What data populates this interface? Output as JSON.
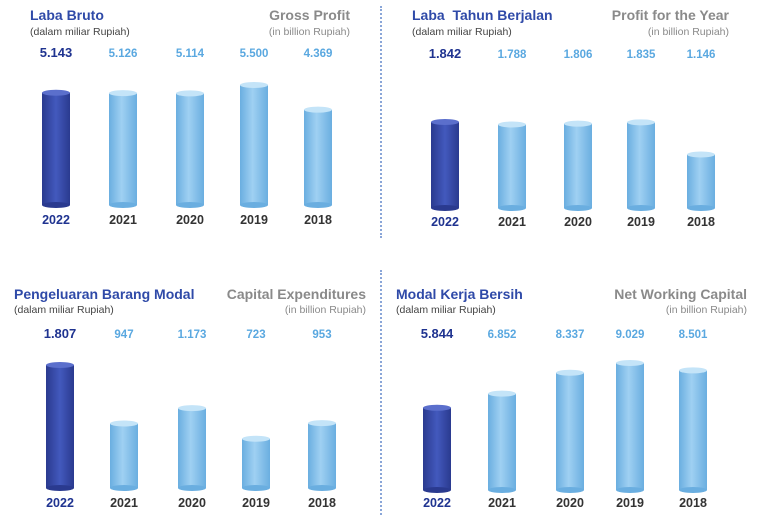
{
  "colors": {
    "highlight_dark": "#2a3a8f",
    "highlight_mid": "#4359bd",
    "bar_light": "#9fd0f2",
    "bar_mid": "#6aaee0",
    "value_highlight": "#1f3390",
    "value_other": "#5aa8e0",
    "year_text": "#333333"
  },
  "panels": [
    {
      "title_id": "Laba Bruto",
      "subtitle_id": "(dalam miliar Rupiah)",
      "title_en": "Gross Profit",
      "subtitle_en": "(in billion Rupiah)"
    },
    {
      "title_id": "Laba  Tahun Berjalan",
      "subtitle_id": "(dalam miliar Rupiah)",
      "title_en": "Profit for the Year",
      "subtitle_en": "(in billion Rupiah)"
    },
    {
      "title_id": "Pengeluaran Barang Modal",
      "subtitle_id": "(dalam miliar Rupiah)",
      "title_en": "Capital Expenditures",
      "subtitle_en": "(in billion Rupiah)"
    },
    {
      "title_id": "Modal Kerja Bersih",
      "subtitle_id": "(dalam miliar Rupiah)",
      "title_en": "Net Working Capital",
      "subtitle_en": "(in billion Rupiah)"
    }
  ],
  "chart_data": [
    {
      "type": "bar",
      "title": "Laba Bruto / Gross Profit",
      "categories": [
        "2022",
        "2021",
        "2020",
        "2019",
        "2018"
      ],
      "values": [
        5143,
        5126,
        5114,
        5500,
        4369
      ],
      "value_labels": [
        "5.143",
        "5.126",
        "5.114",
        "5.500",
        "4.369"
      ],
      "highlight_index": 0
    },
    {
      "type": "bar",
      "title": "Laba Tahun Berjalan / Profit for the Year",
      "categories": [
        "2022",
        "2021",
        "2020",
        "2019",
        "2018"
      ],
      "values": [
        1842,
        1788,
        1806,
        1835,
        1146
      ],
      "value_labels": [
        "1.842",
        "1.788",
        "1.806",
        "1.835",
        "1.146"
      ],
      "highlight_index": 0
    },
    {
      "type": "bar",
      "title": "Pengeluaran Barang Modal / Capital Expenditures",
      "categories": [
        "2022",
        "2021",
        "2020",
        "2019",
        "2018"
      ],
      "values": [
        1807,
        947,
        1173,
        723,
        953
      ],
      "value_labels": [
        "1.807",
        "947",
        "1.173",
        "723",
        "953"
      ],
      "highlight_index": 0
    },
    {
      "type": "bar",
      "title": "Modal Kerja Bersih / Net Working Capital",
      "categories": [
        "2022",
        "2021",
        "2020",
        "2019",
        "2018"
      ],
      "values": [
        5844,
        6852,
        8337,
        9029,
        8501
      ],
      "value_labels": [
        "5.844",
        "6.852",
        "8.337",
        "9.029",
        "8.501"
      ],
      "highlight_index": 0
    }
  ]
}
